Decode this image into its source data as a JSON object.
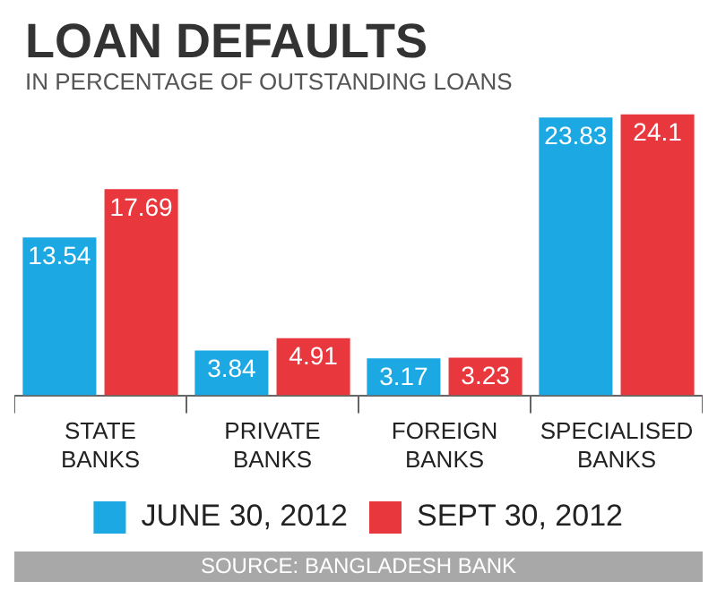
{
  "chart_data": {
    "type": "bar",
    "title": "LOAN DEFAULTS",
    "subtitle": "IN PERCENTAGE OF OUTSTANDING LOANS",
    "categories": [
      "STATE BANKS",
      "PRIVATE BANKS",
      "FOREIGN BANKS",
      "SPECIALISED BANKS"
    ],
    "series": [
      {
        "name": "JUNE 30, 2012",
        "color": "#1ba8e3",
        "values": [
          13.54,
          3.84,
          3.17,
          23.83
        ]
      },
      {
        "name": "SEPT 30, 2012",
        "color": "#e8373d",
        "values": [
          17.69,
          4.91,
          3.23,
          24.1
        ]
      }
    ],
    "data_labels": true,
    "legend": "bottom",
    "annotations": [
      "SOURCE: BANGLADESH BANK"
    ]
  }
}
